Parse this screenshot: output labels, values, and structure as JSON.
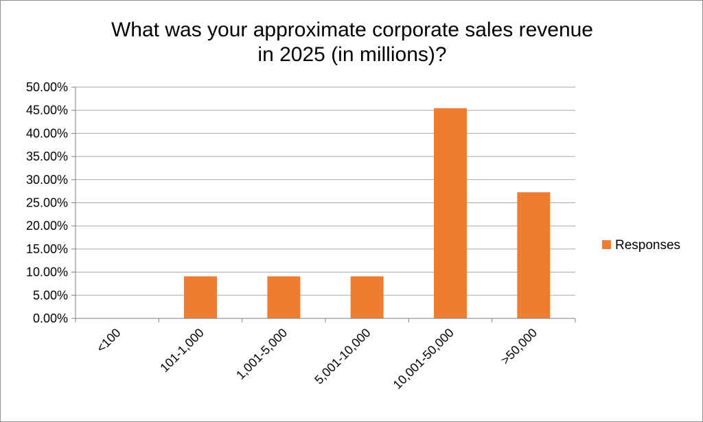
{
  "chart_data": {
    "type": "bar",
    "title_lines": [
      "What was your approximate corporate sales revenue",
      "in 2025 (in millions)?"
    ],
    "categories": [
      "<100",
      "101-1,000",
      "1,001-5,000",
      "5,001-10,000",
      "10,001-50,000",
      ">50,000"
    ],
    "series": [
      {
        "name": "Responses",
        "values": [
          0,
          0.0909,
          0.0909,
          0.0909,
          0.4545,
          0.2727
        ],
        "color": "#ED7D31"
      }
    ],
    "y_ticks": [
      "0.00%",
      "5.00%",
      "10.00%",
      "15.00%",
      "20.00%",
      "25.00%",
      "30.00%",
      "35.00%",
      "40.00%",
      "45.00%",
      "50.00%"
    ],
    "ylim": [
      0,
      0.5
    ],
    "grid": true,
    "legend_position": "right",
    "xlabel": "",
    "ylabel": ""
  },
  "colors": {
    "grid": "#A6A6A6",
    "axis": "#7F7F7F",
    "bar": "#ED7D31"
  }
}
